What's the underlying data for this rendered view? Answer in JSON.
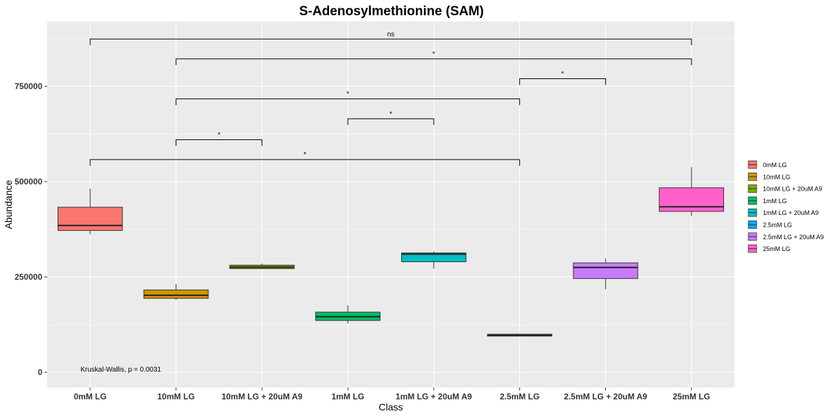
{
  "chart_data": {
    "type": "box",
    "title": "S-Adenosylmethionine (SAM)",
    "xlabel": "Class",
    "ylabel": "Abundance",
    "ylim": [
      -40000,
      920000
    ],
    "yticks": [
      0,
      250000,
      500000,
      750000
    ],
    "ytick_labels": [
      "0",
      "250000",
      "500000",
      "750000"
    ],
    "grid": true,
    "legend_position": "right",
    "categories": [
      "0mM LG",
      "10mM LG",
      "10mM LG + 20uM A9",
      "1mM LG",
      "1mM LG + 20uM A9",
      "2.5mM LG",
      "2.5mM LG + 20uM A9",
      "25mM LG"
    ],
    "boxes": [
      {
        "category": "0mM LG",
        "min": 362000,
        "q1": 372000,
        "median": 385000,
        "q3": 433000,
        "max": 482000,
        "color": "#F8766D"
      },
      {
        "category": "10mM LG",
        "min": 190000,
        "q1": 194000,
        "median": 202000,
        "q3": 216000,
        "max": 231000,
        "color": "#CD9600"
      },
      {
        "category": "10mM LG + 20uM A9",
        "min": 271000,
        "q1": 272000,
        "median": 276000,
        "q3": 281000,
        "max": 285000,
        "color": "#7CAE00"
      },
      {
        "category": "1mM LG",
        "min": 128000,
        "q1": 136000,
        "median": 146000,
        "q3": 158000,
        "max": 176000,
        "color": "#00BE67"
      },
      {
        "category": "1mM LG + 20uM A9",
        "min": 272000,
        "q1": 290000,
        "median": 310000,
        "q3": 313000,
        "max": 317000,
        "color": "#00BFC4"
      },
      {
        "category": "2.5mM LG",
        "min": 94000,
        "q1": 95000,
        "median": 97000,
        "q3": 100000,
        "max": 101000,
        "color": "#00A9FF"
      },
      {
        "category": "2.5mM LG + 20uM A9",
        "min": 218000,
        "q1": 246000,
        "median": 275000,
        "q3": 287000,
        "max": 299000,
        "color": "#C77CFF"
      },
      {
        "category": "25mM LG",
        "min": 410000,
        "q1": 422000,
        "median": 434000,
        "q3": 484000,
        "max": 538000,
        "color": "#FF61CC"
      }
    ],
    "comparisons": [
      {
        "from": 0,
        "to": 7,
        "y": 874000,
        "label": "ns"
      },
      {
        "from": 1,
        "to": 7,
        "y": 822000,
        "label": "*"
      },
      {
        "from": 5,
        "to": 6,
        "y": 770000,
        "label": "*"
      },
      {
        "from": 1,
        "to": 5,
        "y": 717000,
        "label": "*"
      },
      {
        "from": 3,
        "to": 4,
        "y": 665000,
        "label": "*"
      },
      {
        "from": 1,
        "to": 2,
        "y": 610000,
        "label": "*"
      },
      {
        "from": 0,
        "to": 5,
        "y": 558000,
        "label": "*"
      }
    ],
    "annotation": "Kruskal-Wallis, p = 0.0031",
    "legend": [
      "0mM LG",
      "10mM LG",
      "10mM LG + 20uM A9",
      "1mM LG",
      "1mM LG + 20uM A9",
      "2.5mM LG",
      "2.5mM LG + 20uM A9",
      "25mM LG"
    ]
  },
  "colors": {
    "panel_background": "#EBEBEB",
    "grid_line": "#FFFFFF"
  }
}
